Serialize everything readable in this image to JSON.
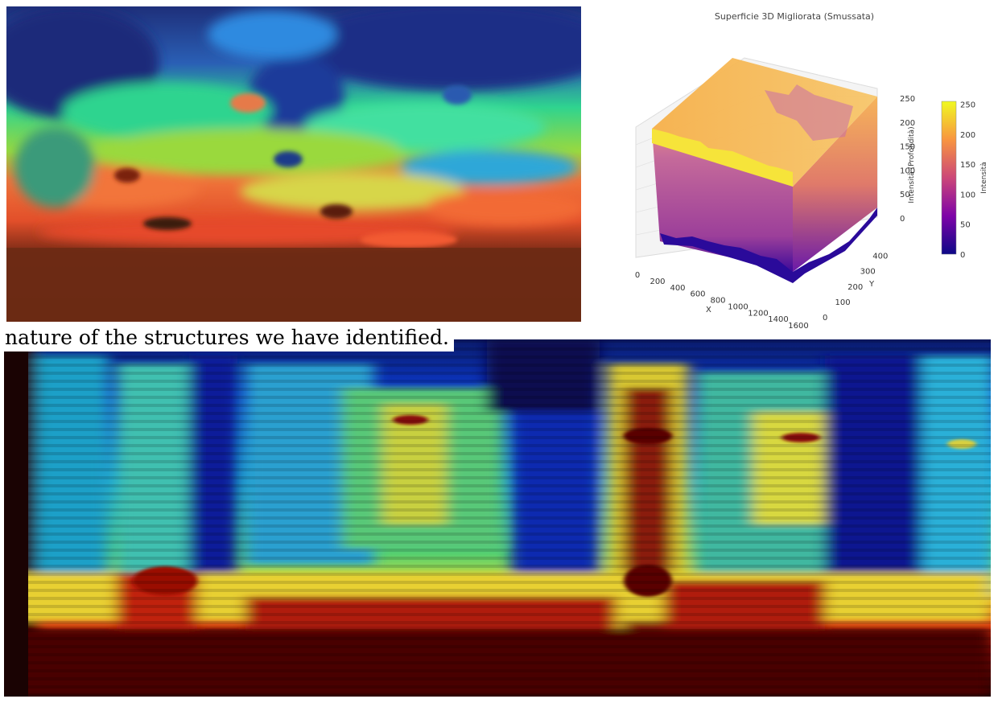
{
  "caption": {
    "text": "nature of the structures we have identified."
  },
  "chart_data": {
    "type": "surface3d",
    "title": "Superficie 3D Migliorata (Smussata)",
    "xlabel": "X",
    "ylabel": "Y",
    "zlabel": "Intensità (Profondità)",
    "colorbar_label": "Intensità",
    "colormap": "plasma",
    "x_ticks": [
      "0",
      "200",
      "400",
      "600",
      "800",
      "1000",
      "1200",
      "1400",
      "1600"
    ],
    "y_ticks": [
      "0",
      "100",
      "200",
      "300",
      "400"
    ],
    "z_ticks": [
      "0",
      "50",
      "100",
      "150",
      "200",
      "250"
    ],
    "colorbar_ticks": [
      "0",
      "50",
      "100",
      "150",
      "200",
      "250"
    ],
    "xlim": [
      0,
      1600
    ],
    "ylim": [
      0,
      450
    ],
    "zlim": [
      0,
      250
    ],
    "colorbar_range": [
      0,
      255
    ]
  },
  "colors": {
    "plasma_low": "#0d0887",
    "plasma_mid": "#cc4778",
    "plasma_high": "#f0f921",
    "jet_low": "#00007f",
    "jet_high": "#7f0000"
  }
}
